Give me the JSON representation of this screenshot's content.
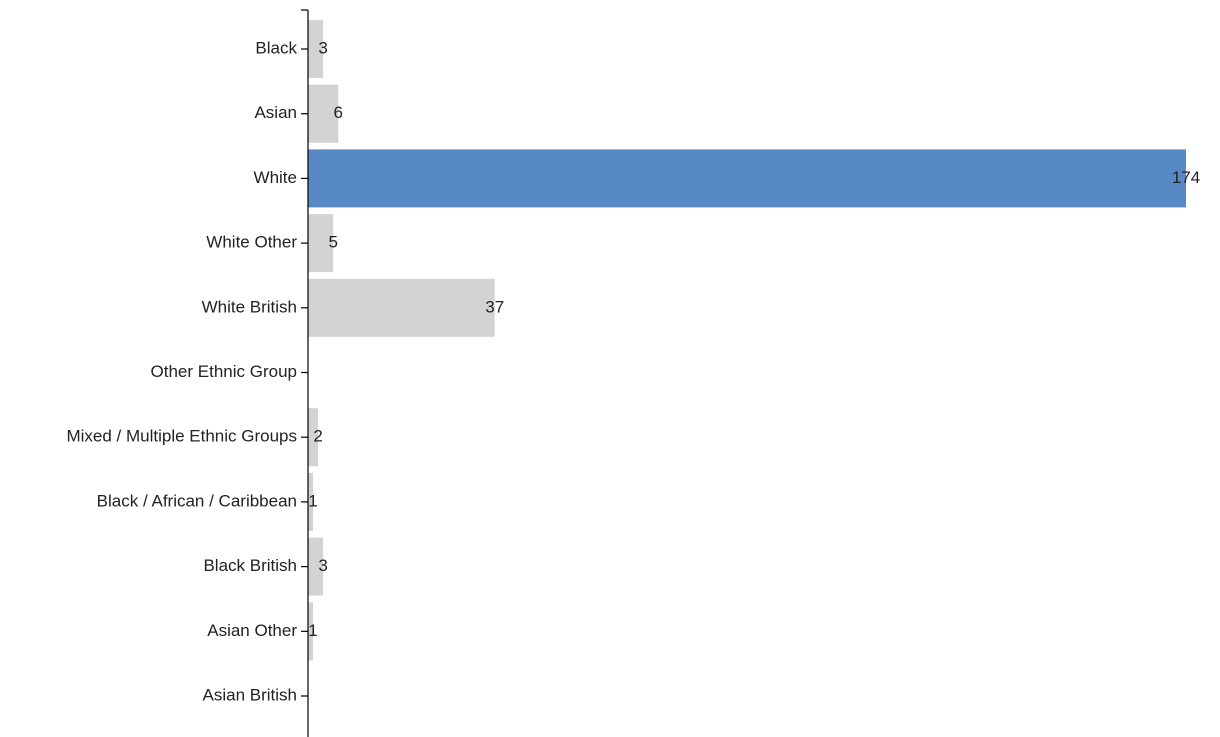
{
  "chart_data": {
    "type": "bar",
    "orientation": "horizontal",
    "categories": [
      "Black",
      "Asian",
      "White",
      "White Other",
      "White British",
      "Other Ethnic Group",
      "Mixed / Multiple Ethnic Groups",
      "Black / African / Caribbean",
      "Black British",
      "Asian Other",
      "Asian British"
    ],
    "values": [
      3,
      6,
      174,
      5,
      37,
      null,
      2,
      1,
      3,
      1,
      null
    ],
    "value_labels": [
      "3",
      "6",
      "174",
      "5",
      "37",
      "",
      "2",
      "1",
      "3",
      "1",
      ""
    ],
    "highlight_category": "White",
    "colors": {
      "default": "#d3d3d3",
      "highlight": "#5789c4"
    },
    "title": "",
    "xlabel": "",
    "ylabel": "",
    "xlim": [
      0,
      174
    ],
    "grid": false,
    "legend": "none"
  }
}
